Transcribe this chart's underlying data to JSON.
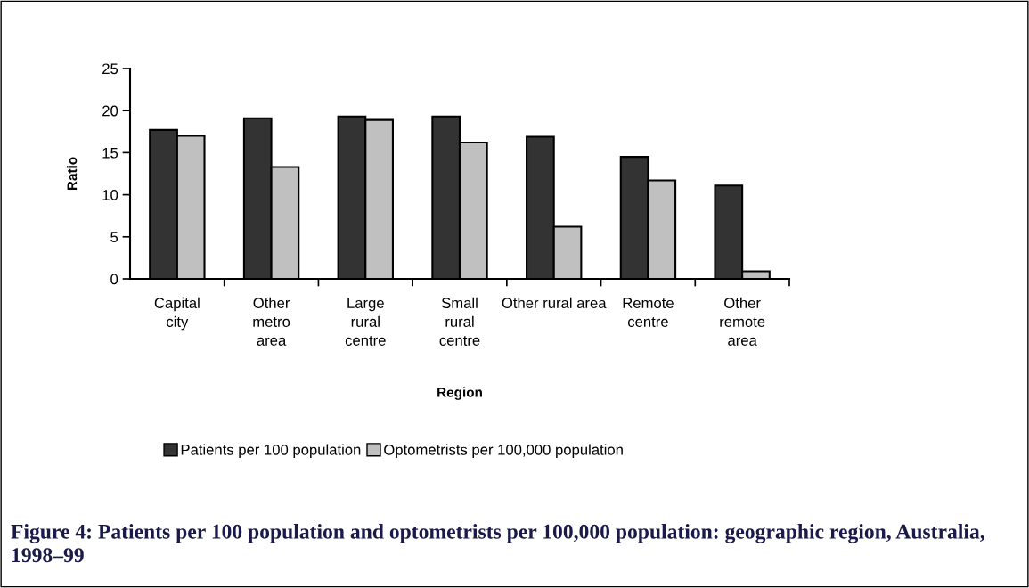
{
  "chart_data": {
    "type": "bar",
    "xlabel": "Region",
    "ylabel": "Ratio",
    "categories": [
      "Capital\ncity",
      "Other\nmetro\narea",
      "Large\nrural\ncentre",
      "Small\nrural\ncentre",
      "Other rural area",
      "Remote\ncentre",
      "Other\nremote\narea"
    ],
    "series": [
      {
        "name": "Patients per 100 population",
        "color": "#333333",
        "values": [
          17.7,
          19.1,
          19.3,
          19.3,
          16.9,
          14.5,
          11.1
        ]
      },
      {
        "name": "Optometrists per 100,000 population",
        "color": "#c0c0c0",
        "values": [
          17.0,
          13.3,
          18.9,
          16.2,
          6.2,
          11.7,
          0.9
        ]
      }
    ],
    "ylim": [
      0,
      25
    ],
    "yticks": [
      0,
      5,
      10,
      15,
      20,
      25
    ],
    "grid": false,
    "legend": "bottom",
    "annotations": [
      "Figure 4: Patients per 100 population and optometrists per 100,000 population: geographic region, Australia, 1998–99"
    ]
  }
}
